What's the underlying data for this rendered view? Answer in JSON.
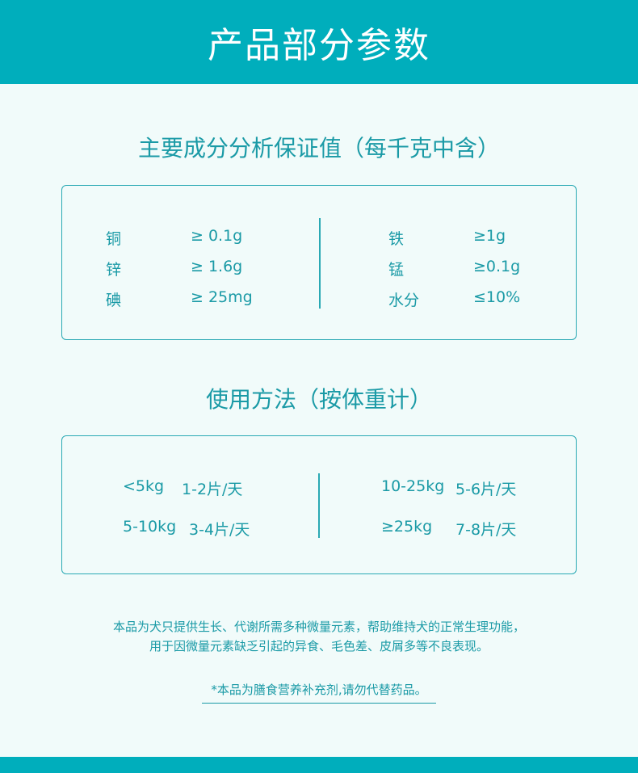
{
  "header": {
    "title": "产品部分参数"
  },
  "composition": {
    "title": "主要成分分析保证值（每千克中含）",
    "left": [
      {
        "name": "铜",
        "value": "≥ 0.1g"
      },
      {
        "name": "锌",
        "value": "≥ 1.6g"
      },
      {
        "name": "碘",
        "value": "≥ 25mg"
      }
    ],
    "right": [
      {
        "name": "铁",
        "value": "≥1g"
      },
      {
        "name": "锰",
        "value": "≥0.1g"
      },
      {
        "name": "水分",
        "value": "≤10%"
      }
    ]
  },
  "usage": {
    "title": "使用方法（按体重计）",
    "left": [
      {
        "weight": "<5kg",
        "dose": "1-2片/天"
      },
      {
        "weight": "5-10kg",
        "dose": "3-4片/天"
      }
    ],
    "right": [
      {
        "weight": "10-25kg",
        "dose": "5-6片/天"
      },
      {
        "weight": "≥25kg",
        "dose": "7-8片/天"
      }
    ]
  },
  "description": {
    "line1": "本品为犬只提供生长、代谢所需多种微量元素，帮助维持犬的正常生理功能，",
    "line2": "用于因微量元素缺乏引起的异食、毛色差、皮屑多等不良表现。"
  },
  "disclaimer": "*本品为膳食营养补充剂,请勿代替药品。",
  "colors": {
    "brand": "#00aebc",
    "text": "#1a9aa6",
    "background": "#f1fbfa"
  }
}
